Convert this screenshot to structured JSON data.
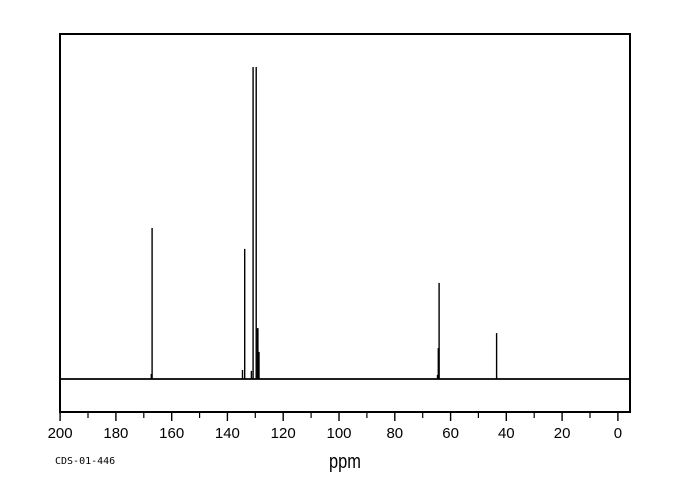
{
  "page": {
    "background_color": "#ffffff",
    "foreground_color": "#000000"
  },
  "footer": {
    "sample_id": "CDS-01-446"
  },
  "chart_data": {
    "type": "line",
    "subtype": "13C NMR spectrum",
    "title": "",
    "xlabel": "ppm",
    "ylabel": "",
    "x_axis_reversed": true,
    "xlim": [
      200.4,
      -4.7
    ],
    "x_major_ticks": [
      200,
      180,
      160,
      140,
      120,
      100,
      80,
      60,
      40,
      20,
      0
    ],
    "x_minor_tick_step": 10,
    "grid": false,
    "line_color": "#000000",
    "peaks_ppm_intensity": [
      {
        "ppm": 167.3,
        "intensity": 1.6
      },
      {
        "ppm": 167.0,
        "intensity": 48.4
      },
      {
        "ppm": 134.6,
        "intensity": 2.9
      },
      {
        "ppm": 133.8,
        "intensity": 41.7
      },
      {
        "ppm": 131.4,
        "intensity": 2.6
      },
      {
        "ppm": 130.8,
        "intensity": 100
      },
      {
        "ppm": 129.7,
        "intensity": 100
      },
      {
        "ppm": 129.2,
        "intensity": 16.3,
        "w": 2
      },
      {
        "ppm": 128.7,
        "intensity": 8.7
      },
      {
        "ppm": 64.7,
        "intensity": 1.3
      },
      {
        "ppm": 64.3,
        "intensity": 9.9,
        "w": 2
      },
      {
        "ppm": 64.1,
        "intensity": 30.8
      },
      {
        "ppm": 43.5,
        "intensity": 14.7
      }
    ]
  }
}
